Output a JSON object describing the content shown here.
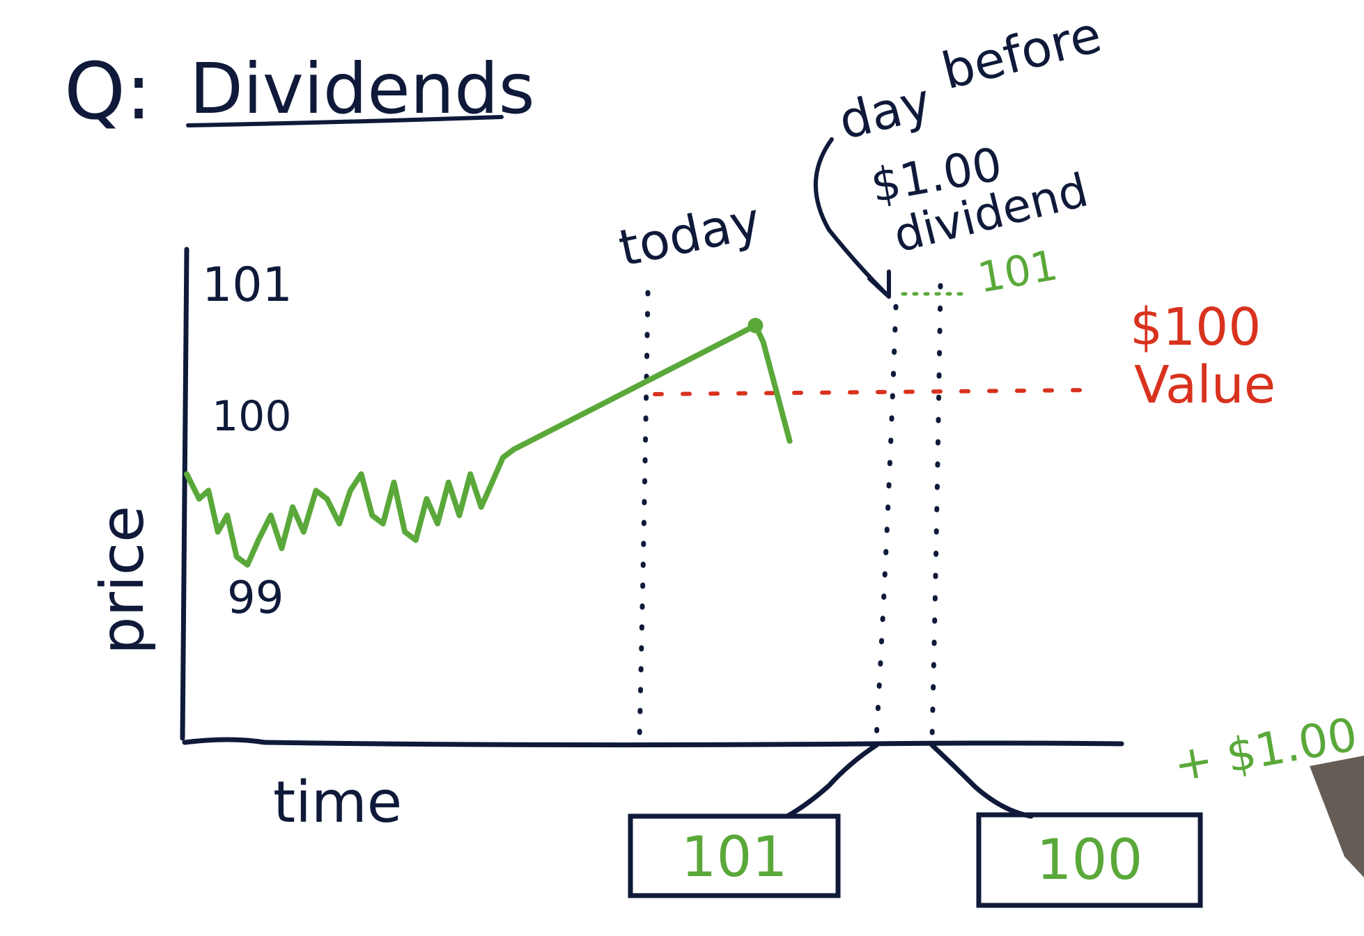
{
  "colors": {
    "ink": "#0f1a3a",
    "green": "#5aa83a",
    "red": "#d8321e",
    "background": "#ffffff"
  },
  "title": {
    "prefix": "Q:",
    "text": "Dividends"
  },
  "axes": {
    "ylabel": "price",
    "xlabel": "time",
    "ticks": [
      "101",
      "100",
      "99"
    ]
  },
  "annotations": {
    "today": "today",
    "day_before_line1": "day",
    "day_before_line2": "before",
    "dividend_amount": "$1.00",
    "dividend_word": "dividend",
    "peak_price": "101",
    "value_amount": "$100",
    "value_word": "Value",
    "plus_dividend": "+ $1.00"
  },
  "boxes": {
    "before_value": "101",
    "after_value": "100"
  },
  "chart_data": {
    "type": "line",
    "series": [
      {
        "values": [
          [
            0,
            100.1
          ],
          [
            0.8,
            99.95
          ],
          [
            1.4,
            100.0
          ],
          [
            2.0,
            99.75
          ],
          [
            2.6,
            99.85
          ],
          [
            3.2,
            99.6
          ],
          [
            3.9,
            99.55
          ],
          [
            4.6,
            99.7
          ],
          [
            5.4,
            99.85
          ],
          [
            6.1,
            99.65
          ],
          [
            6.8,
            99.9
          ],
          [
            7.5,
            99.75
          ],
          [
            8.3,
            100.0
          ],
          [
            9.0,
            99.95
          ],
          [
            9.8,
            99.8
          ],
          [
            10.5,
            100.0
          ],
          [
            11.2,
            100.1
          ],
          [
            11.9,
            99.85
          ],
          [
            12.6,
            99.8
          ],
          [
            13.3,
            100.05
          ],
          [
            14.0,
            99.75
          ],
          [
            14.7,
            99.7
          ],
          [
            15.4,
            99.95
          ],
          [
            16.1,
            99.8
          ],
          [
            16.8,
            100.05
          ],
          [
            17.5,
            99.85
          ],
          [
            18.2,
            100.1
          ],
          [
            18.9,
            99.9
          ],
          [
            19.6,
            100.05
          ],
          [
            20.3,
            100.2
          ],
          [
            21.0,
            100.25
          ],
          [
            36.5,
            101.0
          ],
          [
            37.0,
            100.9
          ],
          [
            38.7,
            100.3
          ]
        ]
      }
    ],
    "reference_lines": [
      {
        "type": "horizontal",
        "y": 100.3,
        "label": "$100 Value"
      }
    ],
    "markers": [
      "today",
      "day before $1.00 dividend",
      "dividend day"
    ],
    "ylim": [
      98.5,
      101.2
    ],
    "xlabel": "time",
    "ylabel": "price"
  }
}
